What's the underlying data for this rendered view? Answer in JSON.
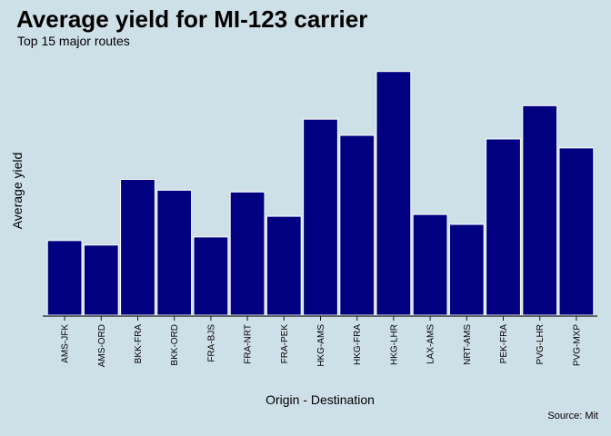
{
  "chart_data": {
    "type": "bar",
    "title": "Average yield for MI-123 carrier",
    "subtitle": "Top 15 major routes",
    "xlabel": "Origin - Destination",
    "ylabel": "Average yield",
    "caption": "Source: Mit",
    "categories": [
      "AMS-JFK",
      "AMS-ORD",
      "BKK-FRA",
      "BKK-ORD",
      "FRA-BJS",
      "FRA-NRT",
      "FRA-PEK",
      "HKG-AMS",
      "HKG-FRA",
      "HKG-LHR",
      "LAX-AMS",
      "NRT-AMS",
      "PEK-FRA",
      "PVG-LHR",
      "PVG-MXP"
    ],
    "values": [
      83,
      78,
      151,
      139,
      87,
      137,
      110,
      218,
      200,
      271,
      112,
      101,
      196,
      233,
      186
    ],
    "ylim": [
      0,
      300
    ],
    "y_ticks_shown": false,
    "grid": false,
    "legend": "none",
    "bar_color": "#000080",
    "bar_outline": "#ffffff",
    "background": "#cddfe7"
  }
}
